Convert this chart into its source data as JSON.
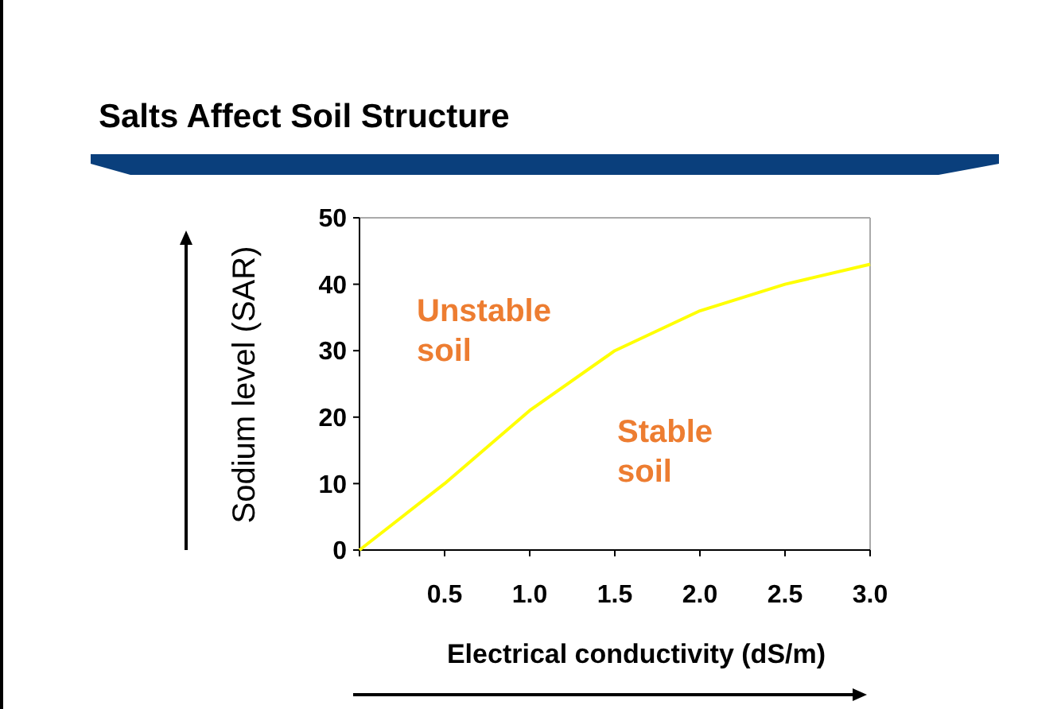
{
  "chart_data": {
    "type": "line",
    "title": "Salts Affect Soil Structure",
    "xlabel": "Electrical conductivity (dS/m)",
    "ylabel": "Sodium level (SAR)",
    "x": [
      0,
      0.5,
      1.0,
      1.5,
      2.0,
      2.5,
      3.0
    ],
    "series": [
      {
        "color": "#ffff00",
        "values": [
          0,
          10,
          21,
          30,
          36,
          40,
          43
        ]
      }
    ],
    "xlim": [
      0,
      3
    ],
    "xticks": [
      {
        "value": 0,
        "label": null
      },
      {
        "value": 0.5,
        "label": "0.5"
      },
      {
        "value": 1,
        "label": "1.0"
      },
      {
        "value": 1.5,
        "label": "1.5"
      },
      {
        "value": 2,
        "label": "2.0"
      },
      {
        "value": 2.5,
        "label": "2.5"
      },
      {
        "value": 3,
        "label": "3.0"
      }
    ],
    "ylim": [
      0,
      50
    ],
    "yticks": [
      0,
      10,
      20,
      30,
      40,
      50
    ],
    "annotations": [
      "Unstable soil",
      "Stable soil"
    ],
    "grid": false,
    "marker": "none",
    "line_style": "solid"
  }
}
